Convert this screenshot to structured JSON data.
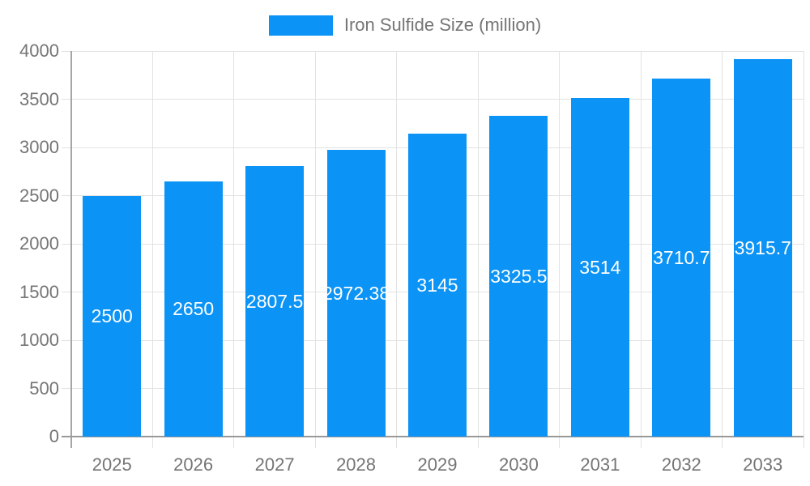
{
  "chart_data": {
    "type": "bar",
    "title": "Iron Sulfide Size (million)",
    "categories": [
      "2025",
      "2026",
      "2027",
      "2028",
      "2029",
      "2030",
      "2031",
      "2032",
      "2033"
    ],
    "series": [
      {
        "name": "Iron Sulfide Size (million)",
        "values": [
          2500,
          2650,
          2807.5,
          2972.38,
          3145,
          3325.5,
          3514,
          3710.7,
          3915.7
        ]
      }
    ],
    "bar_labels": [
      "2500",
      "2650",
      "2807.5",
      "2972.38",
      "3145",
      "3325.5",
      "3514",
      "3710.7",
      "3915.7"
    ],
    "xlabel": "",
    "ylabel": "",
    "ylim": [
      0,
      4000
    ],
    "ytick_step": 500,
    "ytick_labels": [
      "0",
      "500",
      "1000",
      "1500",
      "2000",
      "2500",
      "3000",
      "3500",
      "4000"
    ],
    "grid": true,
    "legend_position": "top-center",
    "colors": {
      "bar": "#0b93f5",
      "value_label": "#ffffff",
      "axis_text": "#757575",
      "gridline": "#e2e2e2",
      "y_axis_line": "#a5a5a5",
      "x_axis_line": "#999999",
      "background": "#ffffff"
    }
  }
}
